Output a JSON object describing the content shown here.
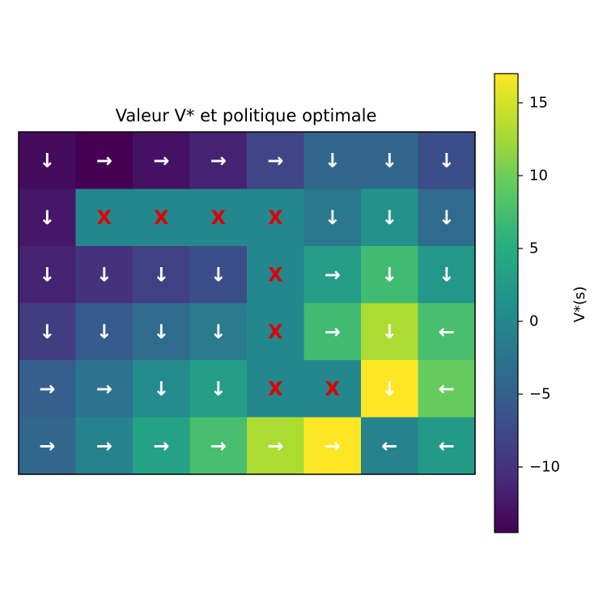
{
  "chart_data": {
    "type": "heatmap",
    "title": "Valeur V* et politique optimale",
    "colorbar": {
      "label": "V*(s)",
      "min": -14.5,
      "max": 17,
      "ticks": [
        "−10",
        "−5",
        "0",
        "5",
        "10",
        "15"
      ],
      "tick_values": [
        -10,
        -5,
        0,
        5,
        10,
        15
      ],
      "colormap": "viridis"
    },
    "rows": 6,
    "cols": 8,
    "values": [
      [
        -13.5,
        -14.5,
        -13.0,
        -11.5,
        -8.0,
        -4.0,
        -4.0,
        -7.0
      ],
      [
        -12.5,
        0,
        0,
        0,
        0,
        -2.0,
        1.5,
        -3.5
      ],
      [
        -11.5,
        -10.0,
        -8.5,
        -7.0,
        0,
        3.0,
        7.0,
        2.0
      ],
      [
        -9.0,
        -5.5,
        -3.5,
        -1.5,
        0,
        7.0,
        13.0,
        7.5
      ],
      [
        -5.0,
        -2.5,
        0.5,
        3.0,
        0,
        0,
        17.0,
        9.5
      ],
      [
        -4.0,
        -0.5,
        3.5,
        7.5,
        13.0,
        17.0,
        -0.5,
        2.5
      ]
    ],
    "policy": [
      [
        "↓",
        "→",
        "→",
        "→",
        "→",
        "↓",
        "↓",
        "↓"
      ],
      [
        "↓",
        "X",
        "X",
        "X",
        "X",
        "↓",
        "↓",
        "↓"
      ],
      [
        "↓",
        "↓",
        "↓",
        "↓",
        "X",
        "→",
        "↓",
        "↓"
      ],
      [
        "↓",
        "↓",
        "↓",
        "↓",
        "X",
        "→",
        "↓",
        "←"
      ],
      [
        "→",
        "→",
        "↓",
        "↓",
        "X",
        "X",
        "↓",
        "←"
      ],
      [
        "→",
        "→",
        "→",
        "→",
        "→",
        "→",
        "←",
        "←"
      ]
    ],
    "wall_symbol": "X",
    "colors": {
      "arrow": "#ffffff",
      "wall": "#e00000"
    }
  }
}
